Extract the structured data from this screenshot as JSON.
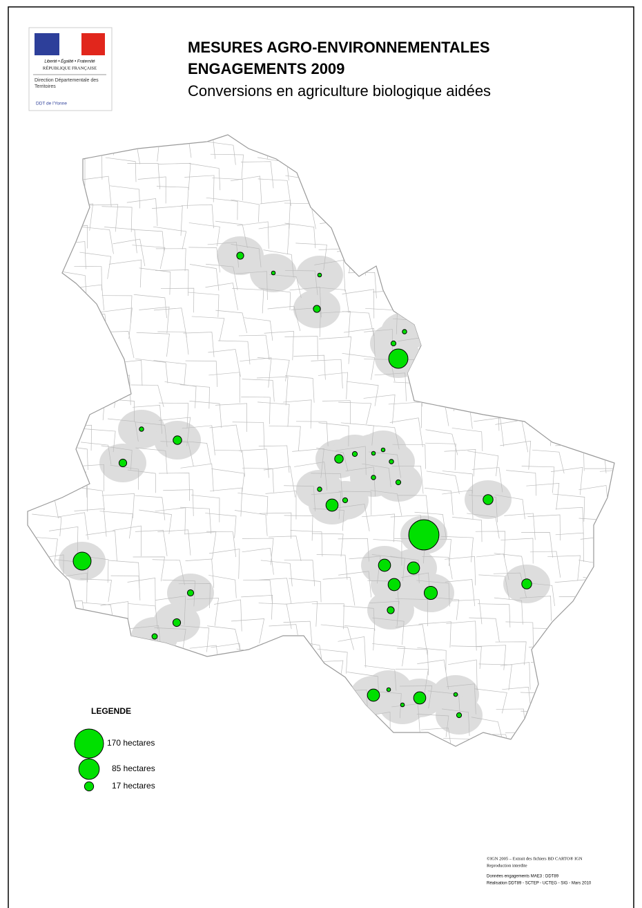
{
  "logo": {
    "motto": "Liberté • Égalité • Fraternité",
    "republic": "RÉPUBLIQUE FRANÇAISE",
    "direction": "Direction Départementale des Territoires",
    "ddt": "DDT de l'Yonne"
  },
  "title": [
    "MESURES AGRO-ENVIRONNEMENTALES",
    "ENGAGEMENTS 2009",
    "Conversions en agriculture biologique aidées"
  ],
  "legend": {
    "title": "LEGENDE",
    "items": [
      {
        "value": 170,
        "label": "170 hectares"
      },
      {
        "value": 85,
        "label": "85 hectares"
      },
      {
        "value": 17,
        "label": "17 hectares"
      }
    ]
  },
  "circles": [
    10,
    3,
    3,
    10,
    4,
    5,
    75,
    4,
    15,
    12,
    15,
    5,
    3,
    3,
    4,
    4,
    5,
    4,
    30,
    5,
    185,
    20,
    30,
    30,
    30,
    35,
    10,
    20,
    65,
    8,
    12,
    6,
    30,
    30,
    3,
    3,
    3,
    5
  ],
  "credits": [
    "©IGN 2005 – Extrait des fichiers BD CARTO® IGN",
    "Reproduction interdite",
    "Données engagements MAE3 : DDT89",
    "Réalisation DDT89 - SCTEP - UCTEG - SIG - Mars 2010"
  ]
}
